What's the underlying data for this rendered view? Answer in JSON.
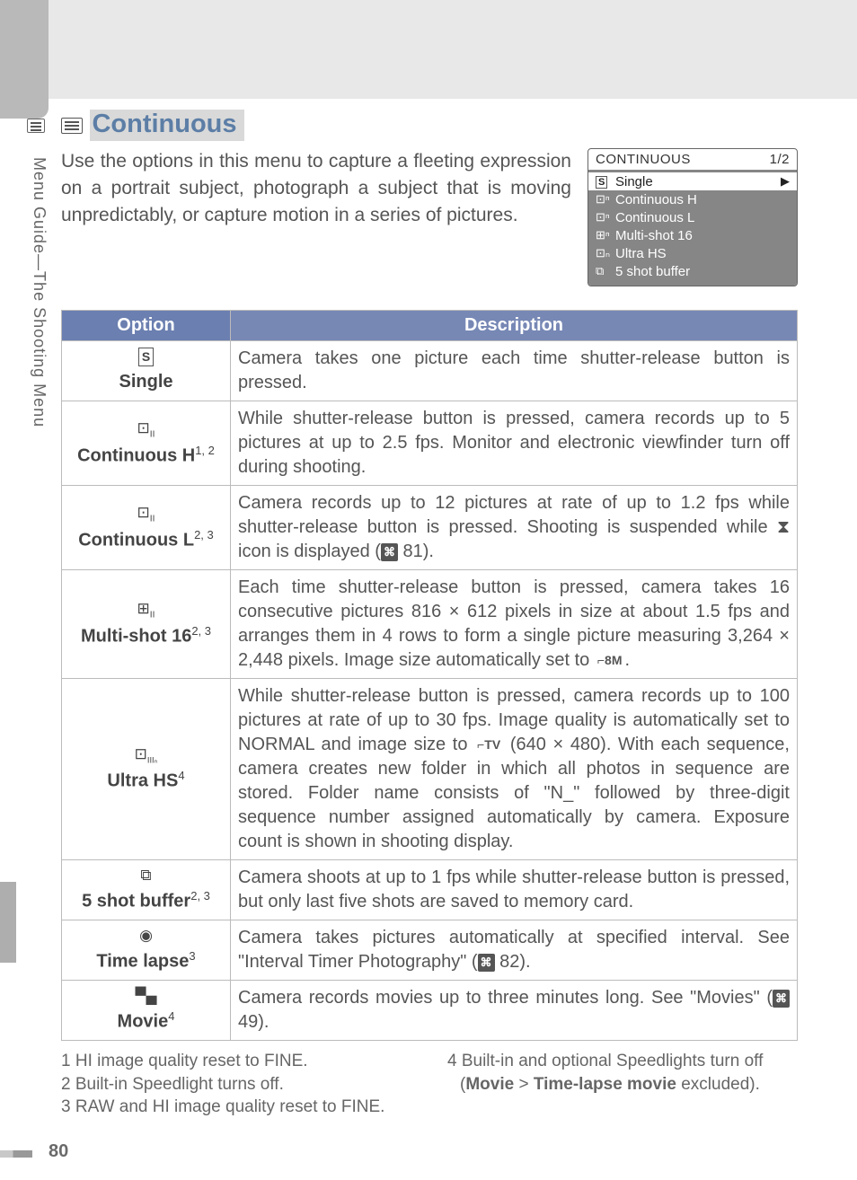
{
  "page_number": "80",
  "side_label": "Menu Guide—The Shooting Menu",
  "section": {
    "title": "Continuous",
    "intro": "Use the options in this menu to capture a fleeting expression on a portrait subject, photograph a subject that is moving unpredictably, or capture motion in a series of pictures."
  },
  "menu_preview": {
    "title": "CONTINUOUS",
    "paging": "1/2",
    "items": [
      {
        "icon": "S",
        "label": "Single",
        "selected": true
      },
      {
        "icon": "⊡ⁿ",
        "label": "Continuous H",
        "selected": false
      },
      {
        "icon": "⊡ⁿ",
        "label": "Continuous  L",
        "selected": false
      },
      {
        "icon": "⊞ⁿ",
        "label": "Multi-shot 16",
        "selected": false
      },
      {
        "icon": "⊡ₙ",
        "label": "Ultra HS",
        "selected": false
      },
      {
        "icon": "⧉",
        "label": "5 shot buffer",
        "selected": false
      }
    ]
  },
  "table": {
    "headers": {
      "option": "Option",
      "description": "Description"
    },
    "rows": [
      {
        "icon_html": "<span class='inline-box'>S</span>",
        "name": "Single",
        "sup": "",
        "desc": "Camera takes one picture each time shutter-release button is pressed."
      },
      {
        "icon_html": "⊡<sub style='font-size:0.6em'>II</sub>",
        "name": "Continuous H",
        "sup": "1, 2",
        "desc": "While shutter-release button is pressed, camera records up to 5 pictures at up to 2.5 fps.  Monitor and electronic viewfinder turn off during shooting."
      },
      {
        "icon_html": "⊡<sub style='font-size:0.6em'>II</sub>",
        "name": "Continuous L",
        "sup": "2, 3",
        "desc": "Camera records up to 12 pictures at rate of up to 1.2 fps while shutter-release button is pressed.  Shooting is suspended while ⧗ icon is displayed (<span class='inline-icon'>⌘</span> 81)."
      },
      {
        "icon_html": "⊞<sub style='font-size:0.6em'>II</sub>",
        "name": "Multi-shot 16",
        "sup": "2, 3",
        "desc": "Each time shutter-release button is pressed, camera takes 16 consecutive pictures 816 × 612 pixels in size at about 1.5 fps and arranges them in 4 rows to form a single picture measuring 3,264 × 2,448 pixels.  Image size automatically set to <span class='inline-box' style='border:none'>⌐8M</span>."
      },
      {
        "icon_html": "⊡<sub style='font-size:0.55em'>IIIₙ</sub>",
        "name": "Ultra HS",
        "sup": "4",
        "desc": "While shutter-release button is pressed, camera records up to 100 pictures at rate of up to 30 fps.  Image quality is automati­cally set to NORMAL and image size to <span class='inline-box' style='border:none'>⌐TV</span> (640 × 480).  With each sequence, camera creates new folder in which all photos in sequence are stored.  Folder name consists of \"N_\" followed by three-digit sequence number assigned automatically by camera.  Exposure count is shown in shooting display."
      },
      {
        "icon_html": "⧉",
        "name": "5 shot buffer",
        "sup": "2, 3",
        "desc": "Camera shoots at up to 1 fps while shutter-release button is pressed, but only last five shots are saved to memory card."
      },
      {
        "icon_html": "◉",
        "name": "Time lapse",
        "sup": "3",
        "desc": "Camera takes pictures automatically at specified interval.  See \"Interval Timer Photography\" (<span class='inline-icon'>⌘</span> 82)."
      },
      {
        "icon_html": "▀▄",
        "name": "Movie",
        "sup": "4",
        "desc": "Camera records movies up to three minutes long.  See \"Mov­ies\" (<span class='inline-icon'>⌘</span> 49)."
      }
    ]
  },
  "footnotes": {
    "left": [
      "1 HI image quality reset to FINE.",
      "2 Built-in Speedlight turns off.",
      "3 RAW and HI image quality reset to FINE."
    ],
    "right": [
      "4 Built-in and optional Speedlights turn off (<b>Movie</b> > <b>Time-lapse movie</b> excluded)."
    ]
  },
  "colors": {
    "accent_blue": "#5c7ea6",
    "header_bg": "#7788b5",
    "menu_bg": "#868686",
    "text": "#555555",
    "border": "#bbbbbb"
  }
}
